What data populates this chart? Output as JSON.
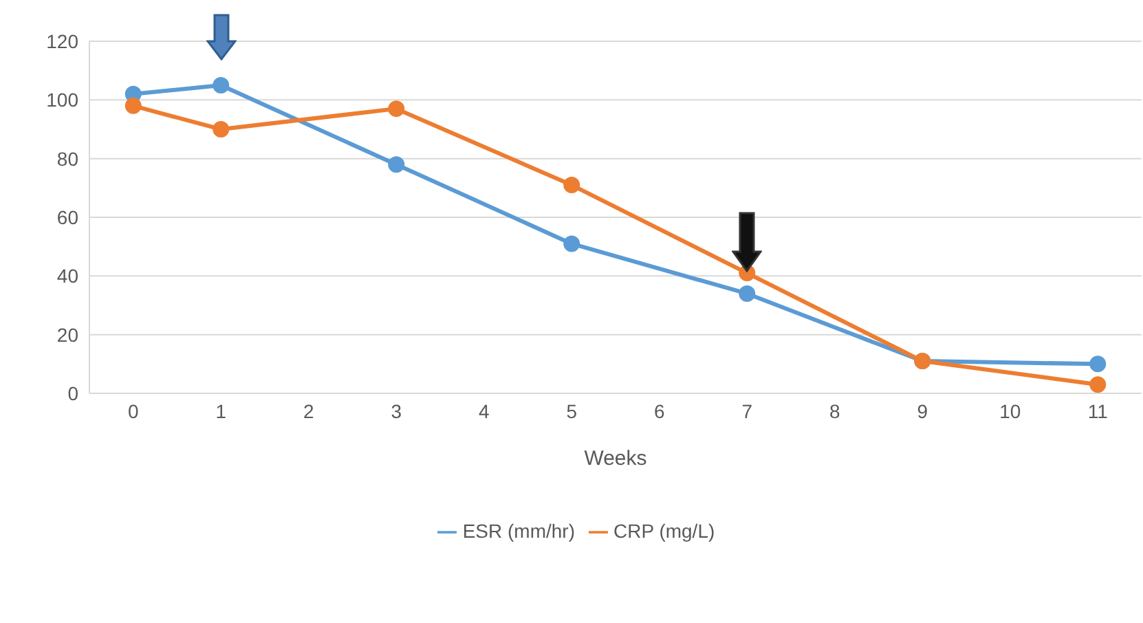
{
  "chart_data": {
    "type": "line",
    "xlabel": "Weeks",
    "x": [
      0,
      1,
      3,
      5,
      7,
      9,
      11
    ],
    "xlim": [
      -0.5,
      11.5
    ],
    "xticks": [
      0,
      1,
      2,
      3,
      4,
      5,
      6,
      7,
      8,
      9,
      10,
      11
    ],
    "ylim": [
      0,
      120
    ],
    "yticks": [
      0,
      20,
      40,
      60,
      80,
      100,
      120
    ],
    "grid": "y",
    "legend": "bottom",
    "marker": "circle",
    "line_style": "solid",
    "series": [
      {
        "name": "ESR (mm/hr)",
        "color": "#5b9bd5",
        "values": [
          102,
          105,
          78,
          51,
          34,
          11,
          10
        ]
      },
      {
        "name": "CRP (mg/L)",
        "color": "#ed7d31",
        "values": [
          98,
          90,
          97,
          71,
          41,
          11,
          3
        ]
      }
    ]
  }
}
